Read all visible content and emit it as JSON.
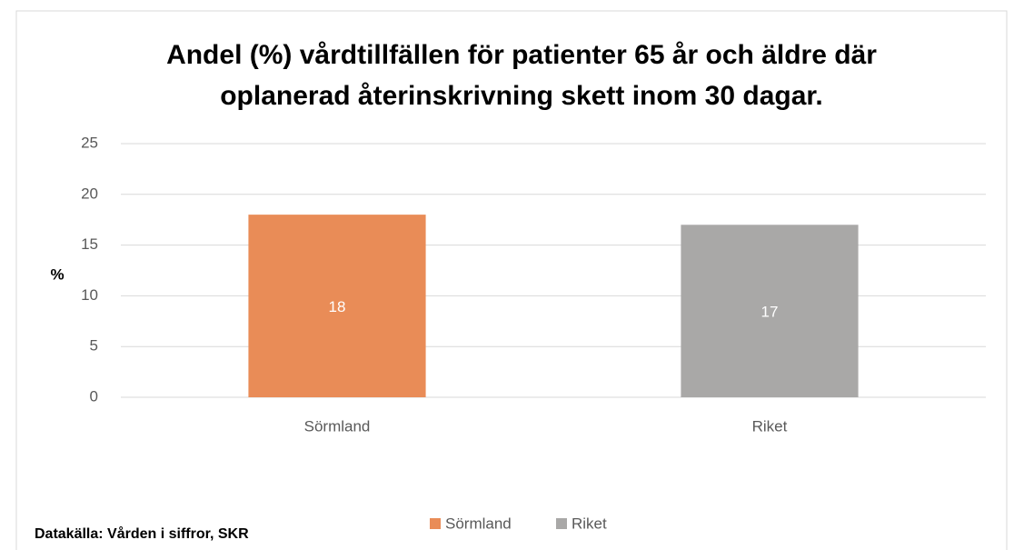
{
  "chart_data": {
    "type": "bar",
    "title": [
      "Andel (%) vårdtillfällen för patienter 65 år och äldre där",
      "oplanerad återinskrivning skett inom 30 dagar."
    ],
    "y_label": "%",
    "source": "Datakälla: Vården i siffror, SKR",
    "categories": [
      "Sörmland",
      "Riket"
    ],
    "series": [
      {
        "name": "Sörmland",
        "color": "#e98c57",
        "values": [
          18,
          null
        ]
      },
      {
        "name": "Riket",
        "color": "#a9a8a7",
        "values": [
          null,
          17
        ]
      }
    ],
    "ylim": [
      0,
      25
    ],
    "yticks": [
      0,
      5,
      10,
      15,
      20,
      25
    ],
    "grid": true,
    "legend": "bottom"
  }
}
